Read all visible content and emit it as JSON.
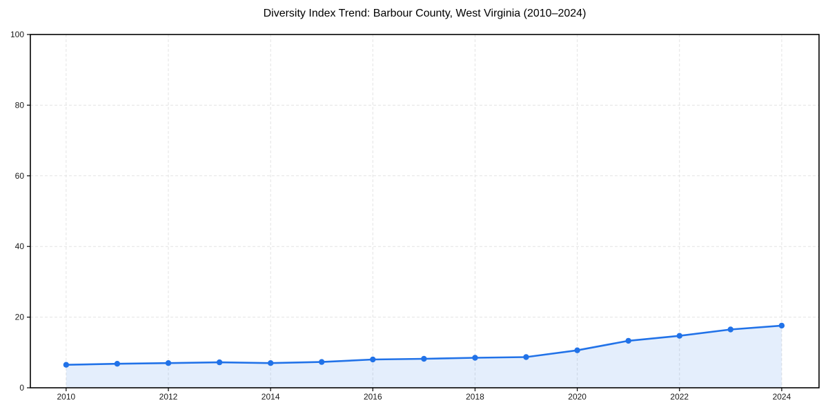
{
  "figure": {
    "background": "#ffffff"
  },
  "chart_data": {
    "type": "line",
    "title": "Diversity Index Trend: Barbour County, West Virginia (2010–2024)",
    "x": [
      2010,
      2011,
      2012,
      2013,
      2014,
      2015,
      2016,
      2017,
      2018,
      2019,
      2020,
      2021,
      2022,
      2023,
      2024
    ],
    "series": [
      {
        "name": "Diversity Index",
        "values": [
          6.5,
          6.8,
          7.0,
          7.2,
          7.0,
          7.3,
          8.0,
          8.2,
          8.5,
          8.7,
          10.6,
          13.3,
          14.7,
          16.5,
          17.6
        ]
      }
    ],
    "xlabel": "",
    "ylabel": "",
    "xlim": [
      2009.3,
      2024.73
    ],
    "ylim": [
      0,
      100
    ],
    "xticks": [
      2010,
      2012,
      2014,
      2016,
      2018,
      2020,
      2022,
      2024
    ],
    "yticks": [
      0,
      20,
      40,
      60,
      80,
      100
    ],
    "grid": true,
    "grid_style": "dashed",
    "legend": false,
    "area_fill": true,
    "marker": "circle",
    "colors": {
      "line": "#2172e8",
      "marker": "#2172e8",
      "area": "rgba(33, 114, 232, 0.12)",
      "grid": "#e3e3e3",
      "axis": "#000000",
      "tick_label": "#1a1a1a",
      "title": "#000000"
    }
  }
}
